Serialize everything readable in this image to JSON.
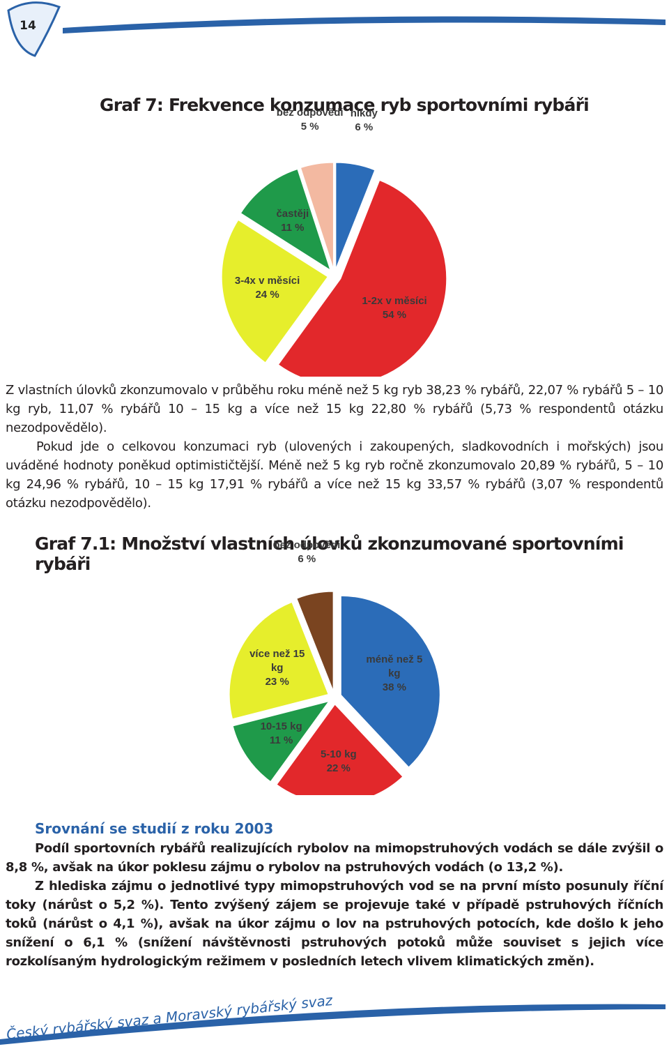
{
  "page_number": "14",
  "chart_data": [
    {
      "type": "pie",
      "title": "Graf 7: Frekvence konzumace ryb sportovními rybáři",
      "categories": [
        "nikdy",
        "1-2x v měsíci",
        "3-4x v měsíci",
        "častěji",
        "bez odpovědi"
      ],
      "values": [
        6,
        54,
        24,
        11,
        5
      ],
      "value_labels": [
        "6 %",
        "54 %",
        "24 %",
        "11 %",
        "5 %"
      ],
      "colors": [
        "#2b6cb8",
        "#e2282b",
        "#e6ee2c",
        "#1f9a4a",
        "#f3b9a1"
      ]
    },
    {
      "type": "pie",
      "title": "Graf 7.1: Množství vlastních úlovků zkonzumované sportovními rybáři",
      "categories": [
        "méně než 5 kg",
        "5-10 kg",
        "10-15 kg",
        "více než 15 kg",
        "bez odpovědi"
      ],
      "values": [
        38,
        22,
        11,
        23,
        6
      ],
      "value_labels": [
        "38 %",
        "22 %",
        "11 %",
        "23 %",
        "6 %"
      ],
      "colors": [
        "#2b6cb8",
        "#e2282b",
        "#1f9a4a",
        "#e6ee2c",
        "#7a4420"
      ]
    }
  ],
  "paragraphs": [
    "Z vlastních úlovků zkonzumovalo v průběhu roku méně než 5 kg ryb 38,23 % rybářů, 22,07 % rybářů 5 – 10 kg ryb, 11,07 % rybářů 10 – 15 kg a více než 15 kg 22,80 % rybářů (5,73 % respondentů otázku nezodpovědělo).",
    "Pokud jde o celkovou konzumaci ryb (ulovených i zakoupených, sladkovodních i mořských) jsou uváděné hodnoty poněkud optimističtější. Méně než 5 kg ryb ročně zkonzumovalo 20,89 % rybářů, 5 – 10 kg 24,96 % rybářů, 10 – 15 kg 17,91 % rybářů a více než 15 kg 33,57 % rybářů (3,07 % respondentů otázku nezodpovědělo)."
  ],
  "comparison": {
    "heading": "Srovnání se studií z roku 2003",
    "paragraphs": [
      "Podíl sportovních rybářů realizujících rybolov na mimopstruhových vodách se dále zvýšil o 8,8 %, avšak na úkor poklesu zájmu o rybolov na pstruhových vodách (o 13,2 %).",
      "Z hlediska zájmu o jednotlivé typy mimopstruhových vod se na první místo posunuly říční toky (nárůst o 5,2 %). Tento zvýšený zájem se projevuje také v případě pstruhových říčních toků (nárůst o 4,1 %), avšak na úkor zájmu o lov na pstruhových potocích, kde došlo k jeho snížení o 6,1 % (snížení návštěvnosti pstruhových potoků může souviset s jejich více rozkolísaným hydrologickým režimem v posledních letech vlivem klimatických změn)."
    ]
  },
  "footer": "Český rybářský svaz a Moravský rybářský svaz"
}
